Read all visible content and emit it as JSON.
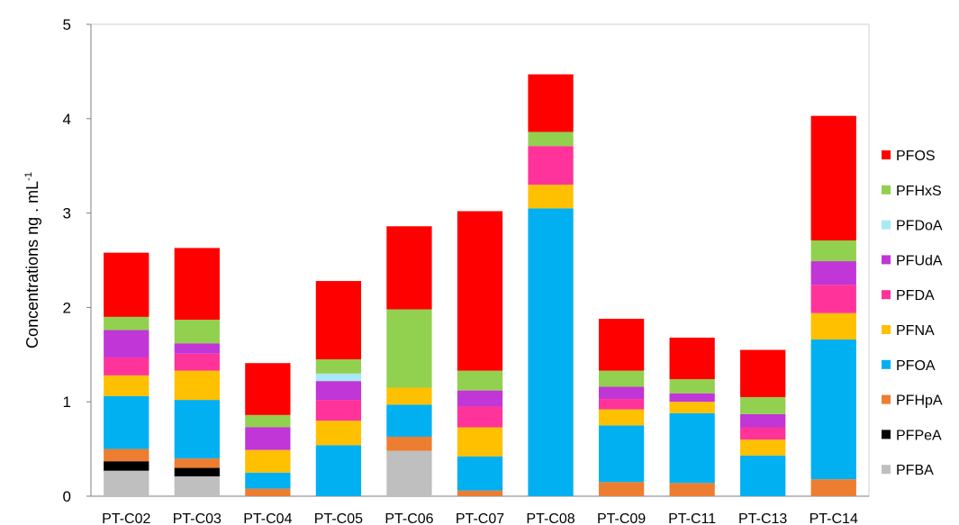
{
  "chart_data": {
    "type": "bar",
    "stacked": true,
    "title": "",
    "xlabel": "",
    "ylabel": "Concentrations ng . mL",
    "ylabel_superscript": "-1",
    "ylim": [
      0,
      5
    ],
    "yticks": [
      "0",
      "1",
      "2",
      "3",
      "4",
      "5"
    ],
    "grid": false,
    "legend_position": "right",
    "categories": [
      "PT-C02",
      "PT-C03",
      "PT-C04",
      "PT-C05",
      "PT-C06",
      "PT-C07",
      "PT-C08",
      "PT-C09",
      "PT-C11",
      "PT-C13",
      "PT-C14"
    ],
    "series": [
      {
        "name": "PFBA",
        "color": "#bfbfbf",
        "values": [
          0.27,
          0.21,
          0,
          0,
          0.48,
          0,
          0,
          0,
          0,
          0,
          0
        ]
      },
      {
        "name": "PFPeA",
        "color": "#000000",
        "values": [
          0.1,
          0.09,
          0,
          0,
          0,
          0,
          0,
          0,
          0,
          0,
          0
        ]
      },
      {
        "name": "PFHpA",
        "color": "#ed7d31",
        "values": [
          0.13,
          0.1,
          0.08,
          0,
          0.15,
          0.06,
          0,
          0.15,
          0.14,
          0,
          0.18
        ]
      },
      {
        "name": "PFOA",
        "color": "#00b0f0",
        "values": [
          0.56,
          0.62,
          0.17,
          0.54,
          0.34,
          0.36,
          3.05,
          0.6,
          0.74,
          0.43,
          1.48
        ]
      },
      {
        "name": "PFNA",
        "color": "#ffc000",
        "values": [
          0.22,
          0.31,
          0.24,
          0.26,
          0.18,
          0.31,
          0.25,
          0.17,
          0.12,
          0.17,
          0.28
        ]
      },
      {
        "name": "PFDA",
        "color": "#ff3399",
        "values": [
          0.19,
          0.18,
          0,
          0.22,
          0,
          0.22,
          0.41,
          0.11,
          0,
          0.13,
          0.3
        ]
      },
      {
        "name": "PFUdA",
        "color": "#c036d6",
        "values": [
          0.29,
          0.11,
          0.24,
          0.2,
          0,
          0.17,
          0,
          0.13,
          0.09,
          0.14,
          0.25
        ]
      },
      {
        "name": "PFDoA",
        "color": "#a9e8f5",
        "values": [
          0,
          0,
          0,
          0.08,
          0,
          0,
          0,
          0,
          0,
          0,
          0
        ]
      },
      {
        "name": "PFHxS",
        "color": "#92d050",
        "values": [
          0.14,
          0.25,
          0.13,
          0.15,
          0.83,
          0.21,
          0.15,
          0.17,
          0.15,
          0.18,
          0.22
        ]
      },
      {
        "name": "PFOS",
        "color": "#ff0000",
        "values": [
          0.68,
          0.76,
          0.55,
          0.83,
          0.88,
          1.69,
          0.61,
          0.55,
          0.44,
          0.5,
          1.32
        ]
      }
    ]
  }
}
